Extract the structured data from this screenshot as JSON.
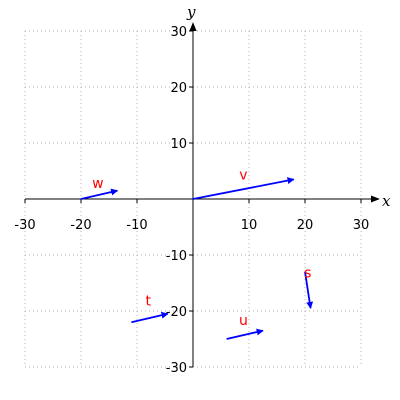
{
  "chart_data": {
    "type": "vector-field",
    "xlabel": "x",
    "ylabel": "y",
    "xlim": [
      -30,
      30
    ],
    "ylim": [
      -30,
      30
    ],
    "x_ticks": [
      -30,
      -20,
      -10,
      10,
      20,
      30
    ],
    "y_ticks": [
      -30,
      -20,
      -10,
      10,
      20,
      30
    ],
    "grid": true,
    "vector_color": "#0000ff",
    "label_color": "#ff0000",
    "axis_color": "#000000",
    "grid_color": "#b0b0b0",
    "vectors": [
      {
        "name": "v",
        "x0": 0,
        "y0": 0,
        "dx": 18,
        "dy": 3.5,
        "label_x": 9,
        "label_y": 3.5
      },
      {
        "name": "w",
        "x0": -20,
        "y0": 0,
        "dx": 6.5,
        "dy": 1.5,
        "label_x": -17,
        "label_y": 2
      },
      {
        "name": "t",
        "x0": -11,
        "y0": -22,
        "dx": 6.5,
        "dy": 1.5,
        "label_x": -8,
        "label_y": -19
      },
      {
        "name": "u",
        "x0": 6,
        "y0": -25,
        "dx": 6.5,
        "dy": 1.5,
        "label_x": 9,
        "label_y": -22.5
      },
      {
        "name": "s",
        "x0": 20,
        "y0": -13,
        "dx": 1,
        "dy": -6.5,
        "label_x": 20.5,
        "label_y": -14
      }
    ]
  }
}
